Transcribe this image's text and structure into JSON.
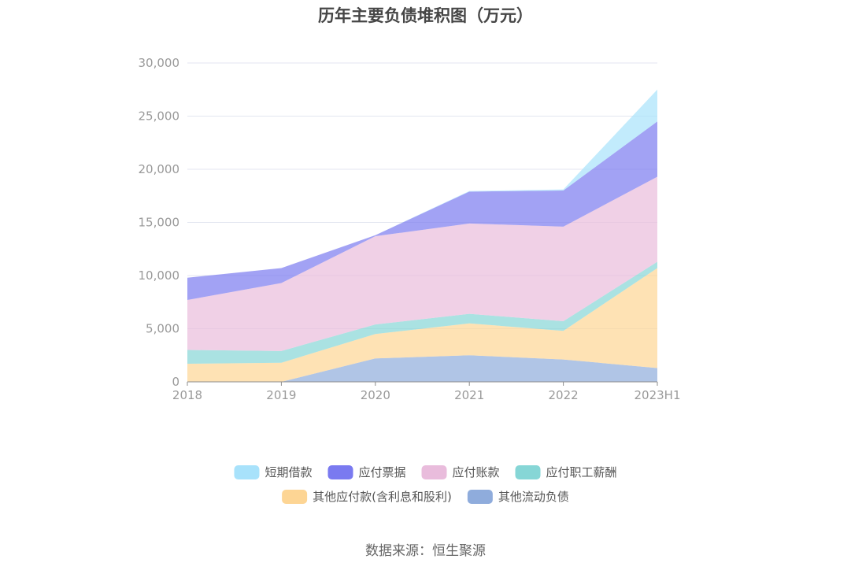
{
  "chart_data": {
    "type": "area",
    "stacked": true,
    "title": "历年主要负债堆积图（万元）",
    "categories": [
      "2018",
      "2019",
      "2020",
      "2021",
      "2022",
      "2023H1"
    ],
    "ylim": [
      0,
      30000
    ],
    "yticks": [
      0,
      5000,
      10000,
      15000,
      20000,
      25000,
      30000
    ],
    "ytick_labels": [
      "0",
      "5,000",
      "10,000",
      "15,000",
      "20,000",
      "25,000",
      "30,000"
    ],
    "grid": true,
    "legend_position": "bottom",
    "series": [
      {
        "name": "其他流动负债",
        "color": "#8facdc",
        "values": [
          0,
          0,
          2200,
          2500,
          2100,
          1300
        ]
      },
      {
        "name": "其他应付款(含利息和股利)",
        "color": "#fdd594",
        "values": [
          1700,
          1800,
          2300,
          3000,
          2700,
          9400
        ]
      },
      {
        "name": "应付职工薪酬",
        "color": "#86d6d6",
        "values": [
          1300,
          1100,
          900,
          900,
          900,
          600
        ]
      },
      {
        "name": "应付账款",
        "color": "#e9bcdc",
        "values": [
          4700,
          6400,
          8300,
          8500,
          8900,
          8000
        ]
      },
      {
        "name": "应付票据",
        "color": "#7a7af0",
        "values": [
          2100,
          1400,
          100,
          3000,
          3400,
          5200
        ]
      },
      {
        "name": "短期借款",
        "color": "#a8e2fb",
        "values": [
          0,
          0,
          0,
          50,
          100,
          3000
        ]
      }
    ],
    "legend_order": [
      "短期借款",
      "应付票据",
      "应付账款",
      "应付职工薪酬",
      "其他应付款(含利息和股利)",
      "其他流动负债"
    ]
  },
  "source_note": "数据来源：恒生聚源"
}
